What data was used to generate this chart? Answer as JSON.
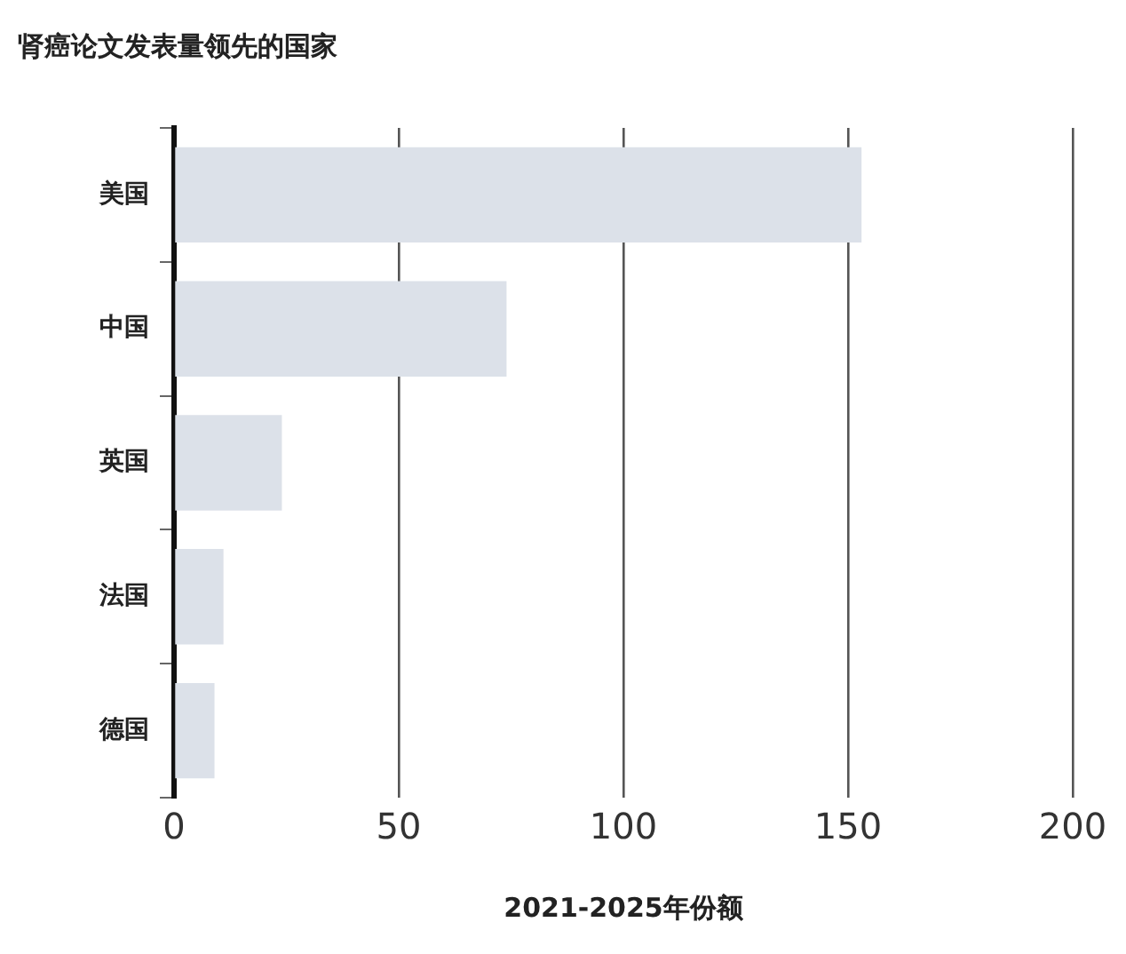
{
  "chart_data": {
    "type": "bar",
    "orientation": "horizontal",
    "title": "肾癌论文发表量领先的国家",
    "xlabel": "2021-2025年份额",
    "categories": [
      "美国",
      "中国",
      "英国",
      "法国",
      "德国"
    ],
    "values": [
      153,
      74,
      24,
      11,
      9
    ],
    "color": "#dce1e9",
    "xlim": [
      0,
      200
    ],
    "xticks": [
      0,
      50,
      100,
      150,
      200
    ],
    "grid": "x"
  }
}
